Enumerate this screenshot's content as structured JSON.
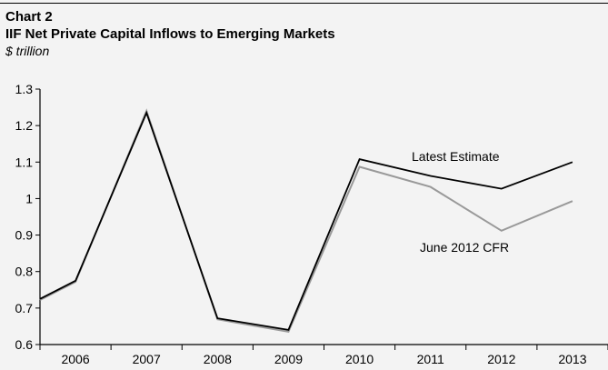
{
  "chart_data": {
    "type": "line",
    "label": "Chart 2",
    "title": "IIF Net Private Capital Inflows to Emerging Markets",
    "subtitle": "$ trillion",
    "x": [
      "2005.5",
      "2006",
      "2007",
      "2008",
      "2009",
      "2010",
      "2011",
      "2012",
      "2013"
    ],
    "categories": [
      "2006",
      "2007",
      "2008",
      "2009",
      "2010",
      "2011",
      "2012",
      "2013"
    ],
    "series": [
      {
        "name": "Latest Estimate",
        "color": "#000000",
        "points": [
          [
            2005.5,
            0.725
          ],
          [
            2006,
            0.775
          ],
          [
            2007,
            1.235
          ],
          [
            2008,
            0.672
          ],
          [
            2009,
            0.64
          ],
          [
            2010,
            1.108
          ],
          [
            2011,
            1.062
          ],
          [
            2012,
            1.027
          ],
          [
            2013,
            1.1
          ]
        ]
      },
      {
        "name": "June 2012 CFR",
        "color": "#999999",
        "points": [
          [
            2005.5,
            0.722
          ],
          [
            2006,
            0.772
          ],
          [
            2007,
            1.24
          ],
          [
            2008,
            0.669
          ],
          [
            2009,
            0.635
          ],
          [
            2010,
            1.087
          ],
          [
            2011,
            1.032
          ],
          [
            2012,
            0.912
          ],
          [
            2013,
            0.993
          ]
        ]
      }
    ],
    "yticks": [
      "0.6",
      "0.7",
      "0.8",
      "0.9",
      "1",
      "1.1",
      "1.2",
      "1.3"
    ],
    "ylim": [
      0.6,
      1.3
    ],
    "xlim": [
      2005.5,
      2013.5
    ],
    "grid": false,
    "legend": "inline-annotations"
  }
}
